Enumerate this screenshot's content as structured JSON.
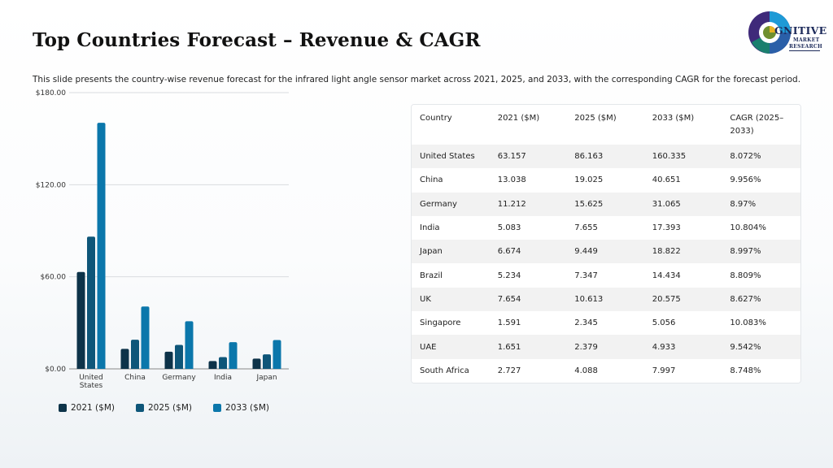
{
  "header": {
    "title": "Top Countries Forecast – Revenue & CAGR",
    "subtitle": "This slide presents the country-wise revenue forecast for the infrared light angle sensor market across 2021, 2025, and 2033, with the corresponding CAGR for the forecast period."
  },
  "logo": {
    "brand": "GNITIVE",
    "line1": "MARKET",
    "line2": "RESEARCH",
    "icon": "cognitive-market-research-logo"
  },
  "colors": {
    "series_2021": "#0d3349",
    "series_2025": "#0e5679",
    "series_2033": "#0b77ab",
    "grid": "#d9dcdf"
  },
  "chart_data": {
    "type": "bar",
    "categories": [
      "United States",
      "China",
      "Germany",
      "India",
      "Japan"
    ],
    "category_lines": [
      [
        "United",
        "States"
      ],
      [
        "China"
      ],
      [
        "Germany"
      ],
      [
        "India"
      ],
      [
        "Japan"
      ]
    ],
    "series": [
      {
        "name": "2021 ($M)",
        "values": [
          63.157,
          13.038,
          11.212,
          5.083,
          6.674
        ]
      },
      {
        "name": "2025 ($M)",
        "values": [
          86.163,
          19.025,
          15.625,
          7.655,
          9.449
        ]
      },
      {
        "name": "2033 ($M)",
        "values": [
          160.335,
          40.651,
          31.065,
          17.393,
          18.822
        ]
      }
    ],
    "ylim": [
      0,
      180
    ],
    "yticks": [
      0,
      60,
      120,
      180
    ],
    "ytick_labels": [
      "$0.00",
      "$60.00",
      "$120.00",
      "$180.00"
    ],
    "grid": true,
    "legend": "bottom"
  },
  "table": {
    "headers": [
      "Country",
      "2021 ($M)",
      "2025 ($M)",
      "2033 ($M)",
      "CAGR (2025–2033)"
    ],
    "rows": [
      [
        "United States",
        "63.157",
        "86.163",
        "160.335",
        "8.072%"
      ],
      [
        "China",
        "13.038",
        "19.025",
        "40.651",
        "9.956%"
      ],
      [
        "Germany",
        "11.212",
        "15.625",
        "31.065",
        "8.97%"
      ],
      [
        "India",
        "5.083",
        "7.655",
        "17.393",
        "10.804%"
      ],
      [
        "Japan",
        "6.674",
        "9.449",
        "18.822",
        "8.997%"
      ],
      [
        "Brazil",
        "5.234",
        "7.347",
        "14.434",
        "8.809%"
      ],
      [
        "UK",
        "7.654",
        "10.613",
        "20.575",
        "8.627%"
      ],
      [
        "Singapore",
        "1.591",
        "2.345",
        "5.056",
        "10.083%"
      ],
      [
        "UAE",
        "1.651",
        "2.379",
        "4.933",
        "9.542%"
      ],
      [
        "South Africa",
        "2.727",
        "4.088",
        "7.997",
        "8.748%"
      ]
    ]
  }
}
